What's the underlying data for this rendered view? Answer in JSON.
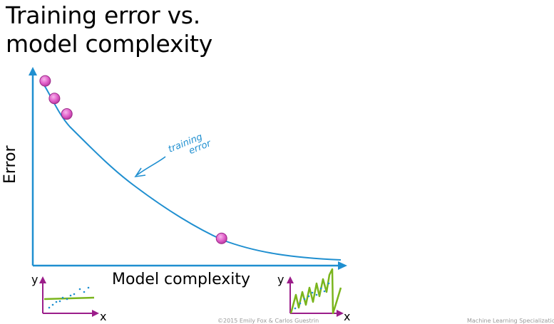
{
  "title_line1": "Training error vs.",
  "title_line2": "model complexity",
  "chart_data": {
    "type": "line",
    "title": "Training error vs. model complexity",
    "xlabel": "Model complexity",
    "ylabel": "Error",
    "series": [
      {
        "name": "training error",
        "x": [
          0.04,
          0.12,
          0.2,
          0.35,
          0.5,
          0.65,
          0.8,
          1.0
        ],
        "y": [
          0.95,
          0.85,
          0.72,
          0.5,
          0.32,
          0.18,
          0.09,
          0.02
        ]
      }
    ],
    "highlighted_points": [
      {
        "x": 0.04,
        "y": 0.95
      },
      {
        "x": 0.07,
        "y": 0.86
      },
      {
        "x": 0.11,
        "y": 0.78
      },
      {
        "x": 0.61,
        "y": 0.14
      }
    ],
    "annotation": "training error",
    "xlim": [
      0,
      1
    ],
    "ylim": [
      0,
      1
    ],
    "grid": false
  },
  "insets": {
    "left": {
      "y_label": "y",
      "x_label": "x"
    },
    "right": {
      "y_label": "y",
      "x_label": "x"
    }
  },
  "footer": {
    "left": "©2015 Emily Fox & Carlos Guestrin",
    "right": "Machine Learning Specialization"
  },
  "colors": {
    "curve": "#1f8fd0",
    "axis": "#1f8fd0",
    "points": "#e15fc9",
    "inset_axis": "#9b1d8a",
    "inset_fit": "#7ab51d"
  }
}
